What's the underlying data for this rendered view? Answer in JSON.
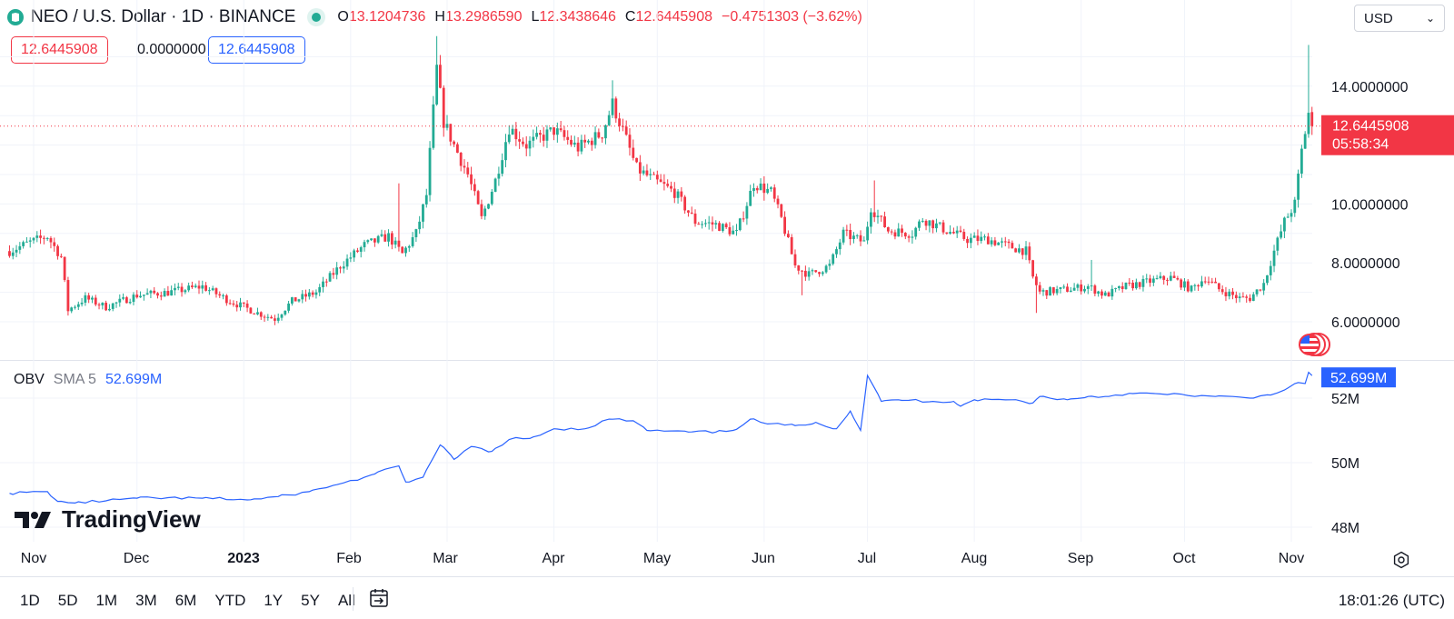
{
  "header": {
    "symbol_title": "NEO / U.S. Dollar · 1D · BINANCE",
    "ohlc": [
      {
        "key": "O",
        "value": "13.1204736"
      },
      {
        "key": "H",
        "value": "13.2986590"
      },
      {
        "key": "L",
        "value": "12.3438646"
      },
      {
        "key": "C",
        "value": "12.6445908"
      }
    ],
    "change": "−0.4751303 (−3.62%)",
    "box1": "12.6445908",
    "box2": "0.0000000",
    "box3": "12.6445908",
    "currency": "USD",
    "status_color": "#22ab94"
  },
  "colors": {
    "up": "#22ab94",
    "down": "#f23645",
    "obv": "#2962ff"
  },
  "price_tag": {
    "price": "12.6445908",
    "countdown": "05:58:34"
  },
  "obv": {
    "name": "OBV",
    "sma": "SMA 5",
    "value": "52.699M",
    "tag": "52.699M"
  },
  "brand": "TradingView",
  "xaxis": [
    {
      "label": "Nov",
      "bold": false
    },
    {
      "label": "Dec",
      "bold": false
    },
    {
      "label": "2023",
      "bold": true
    },
    {
      "label": "Feb",
      "bold": false
    },
    {
      "label": "Mar",
      "bold": false
    },
    {
      "label": "Apr",
      "bold": false
    },
    {
      "label": "May",
      "bold": false
    },
    {
      "label": "Jun",
      "bold": false
    },
    {
      "label": "Jul",
      "bold": false
    },
    {
      "label": "Aug",
      "bold": false
    },
    {
      "label": "Sep",
      "bold": false
    },
    {
      "label": "Oct",
      "bold": false
    },
    {
      "label": "Nov",
      "bold": false
    }
  ],
  "ranges": [
    "1D",
    "5D",
    "1M",
    "3M",
    "6M",
    "YTD",
    "1Y",
    "5Y",
    "All"
  ],
  "clock": "18:01:26 (UTC)",
  "chart_data": [
    {
      "type": "candlestick",
      "title": "NEO / U.S. Dollar · 1D · BINANCE",
      "interval": "1D",
      "yticks": [
        {
          "value": 14,
          "label": "14.0000000"
        },
        {
          "value": 10,
          "label": "10.0000000"
        },
        {
          "value": 8,
          "label": "8.0000000"
        },
        {
          "value": 6,
          "label": "6.0000000"
        }
      ],
      "ylim": [
        5.1,
        15.8
      ],
      "last_price": 12.6445908,
      "x_start": "2022-10-25",
      "x_end": "2023-11-08",
      "close_path": [
        [
          "2022-10-25",
          8.4
        ],
        [
          "2022-10-31",
          8.7
        ],
        [
          "2022-11-05",
          8.9
        ],
        [
          "2022-11-09",
          8.2
        ],
        [
          "2022-11-11",
          6.4
        ],
        [
          "2022-11-16",
          6.8
        ],
        [
          "2022-11-22",
          6.5
        ],
        [
          "2022-12-01",
          6.9
        ],
        [
          "2022-12-10",
          7.0
        ],
        [
          "2022-12-20",
          7.2
        ],
        [
          "2022-12-28",
          6.7
        ],
        [
          "2023-01-05",
          6.3
        ],
        [
          "2023-01-10",
          6.1
        ],
        [
          "2023-01-15",
          6.7
        ],
        [
          "2023-01-22",
          7.0
        ],
        [
          "2023-01-29",
          7.9
        ],
        [
          "2023-02-05",
          8.6
        ],
        [
          "2023-02-12",
          8.9
        ],
        [
          "2023-02-16",
          8.3
        ],
        [
          "2023-02-20",
          9.0
        ],
        [
          "2023-02-23",
          10.3
        ],
        [
          "2023-02-26",
          14.6
        ],
        [
          "2023-02-28",
          12.8
        ],
        [
          "2023-03-03",
          12.0
        ],
        [
          "2023-03-07",
          11.0
        ],
        [
          "2023-03-11",
          9.5
        ],
        [
          "2023-03-15",
          10.8
        ],
        [
          "2023-03-19",
          12.6
        ],
        [
          "2023-03-24",
          12.0
        ],
        [
          "2023-04-01",
          12.5
        ],
        [
          "2023-04-08",
          11.9
        ],
        [
          "2023-04-15",
          12.4
        ],
        [
          "2023-04-18",
          13.4
        ],
        [
          "2023-04-21",
          12.5
        ],
        [
          "2023-04-25",
          11.2
        ],
        [
          "2023-04-30",
          10.8
        ],
        [
          "2023-05-06",
          10.4
        ],
        [
          "2023-05-12",
          9.4
        ],
        [
          "2023-05-18",
          9.3
        ],
        [
          "2023-05-24",
          9.0
        ],
        [
          "2023-05-29",
          10.7
        ],
        [
          "2023-06-03",
          10.4
        ],
        [
          "2023-06-06",
          9.5
        ],
        [
          "2023-06-10",
          7.9
        ],
        [
          "2023-06-14",
          7.6
        ],
        [
          "2023-06-20",
          7.9
        ],
        [
          "2023-06-24",
          9.0
        ],
        [
          "2023-06-30",
          8.7
        ],
        [
          "2023-07-02",
          9.9
        ],
        [
          "2023-07-07",
          9.1
        ],
        [
          "2023-07-14",
          9.0
        ],
        [
          "2023-07-17",
          9.5
        ],
        [
          "2023-07-24",
          9.1
        ],
        [
          "2023-07-30",
          8.8
        ],
        [
          "2023-08-05",
          8.8
        ],
        [
          "2023-08-10",
          8.6
        ],
        [
          "2023-08-16",
          8.4
        ],
        [
          "2023-08-18",
          7.5
        ],
        [
          "2023-08-20",
          7.0
        ],
        [
          "2023-08-28",
          7.1
        ],
        [
          "2023-09-03",
          7.2
        ],
        [
          "2023-09-08",
          6.9
        ],
        [
          "2023-09-14",
          7.2
        ],
        [
          "2023-09-22",
          7.4
        ],
        [
          "2023-09-27",
          7.5
        ],
        [
          "2023-10-03",
          7.1
        ],
        [
          "2023-10-07",
          7.5
        ],
        [
          "2023-10-11",
          7.1
        ],
        [
          "2023-10-17",
          6.8
        ],
        [
          "2023-10-20",
          6.8
        ],
        [
          "2023-10-24",
          7.3
        ],
        [
          "2023-10-27",
          8.4
        ],
        [
          "2023-10-30",
          9.4
        ],
        [
          "2023-11-02",
          10.0
        ],
        [
          "2023-11-04",
          11.8
        ],
        [
          "2023-11-06",
          13.1
        ],
        [
          "2023-11-07",
          12.6445908
        ]
      ]
    },
    {
      "type": "line",
      "title": "OBV",
      "yticks": [
        {
          "value": 52,
          "label": "52M"
        },
        {
          "value": 50,
          "label": "50M"
        },
        {
          "value": 48,
          "label": "48M"
        }
      ],
      "ylim": [
        47.8,
        53.2
      ],
      "series": [
        {
          "name": "OBV",
          "color": "#2962ff",
          "points": [
            [
              "2022-10-25",
              49.05
            ],
            [
              "2022-11-05",
              49.1
            ],
            [
              "2022-11-08",
              48.8
            ],
            [
              "2022-11-13",
              48.75
            ],
            [
              "2022-12-01",
              48.9
            ],
            [
              "2022-12-20",
              48.9
            ],
            [
              "2023-01-03",
              48.85
            ],
            [
              "2023-01-11",
              48.95
            ],
            [
              "2023-01-20",
              49.1
            ],
            [
              "2023-01-27",
              49.3
            ],
            [
              "2023-02-02",
              49.45
            ],
            [
              "2023-02-08",
              49.65
            ],
            [
              "2023-02-15",
              49.9
            ],
            [
              "2023-02-17",
              49.4
            ],
            [
              "2023-02-22",
              49.55
            ],
            [
              "2023-02-27",
              50.55
            ],
            [
              "2023-03-03",
              50.1
            ],
            [
              "2023-03-08",
              50.5
            ],
            [
              "2023-03-14",
              50.35
            ],
            [
              "2023-03-20",
              50.75
            ],
            [
              "2023-03-25",
              50.75
            ],
            [
              "2023-04-01",
              51.05
            ],
            [
              "2023-04-10",
              51.05
            ],
            [
              "2023-04-17",
              51.35
            ],
            [
              "2023-04-24",
              51.3
            ],
            [
              "2023-04-28",
              51.0
            ],
            [
              "2023-05-10",
              50.95
            ],
            [
              "2023-05-18",
              50.95
            ],
            [
              "2023-05-23",
              51.0
            ],
            [
              "2023-05-28",
              51.35
            ],
            [
              "2023-06-02",
              51.2
            ],
            [
              "2023-06-10",
              51.15
            ],
            [
              "2023-06-16",
              51.25
            ],
            [
              "2023-06-22",
              51.05
            ],
            [
              "2023-06-26",
              51.6
            ],
            [
              "2023-06-29",
              51.0
            ],
            [
              "2023-07-01",
              52.7
            ],
            [
              "2023-07-05",
              51.9
            ],
            [
              "2023-07-10",
              51.95
            ],
            [
              "2023-07-20",
              51.9
            ],
            [
              "2023-07-26",
              51.9
            ],
            [
              "2023-07-28",
              51.75
            ],
            [
              "2023-08-01",
              51.95
            ],
            [
              "2023-08-12",
              51.95
            ],
            [
              "2023-08-18",
              51.85
            ],
            [
              "2023-08-20",
              52.05
            ],
            [
              "2023-08-28",
              51.95
            ],
            [
              "2023-09-03",
              52.05
            ],
            [
              "2023-09-08",
              52.05
            ],
            [
              "2023-09-15",
              52.15
            ],
            [
              "2023-10-01",
              52.1
            ],
            [
              "2023-10-10",
              52.05
            ],
            [
              "2023-10-20",
              52.0
            ],
            [
              "2023-10-25",
              52.1
            ],
            [
              "2023-10-30",
              52.25
            ],
            [
              "2023-11-02",
              52.45
            ],
            [
              "2023-11-05",
              52.45
            ],
            [
              "2023-11-06",
              52.8
            ],
            [
              "2023-11-07",
              52.699
            ]
          ]
        }
      ]
    }
  ]
}
